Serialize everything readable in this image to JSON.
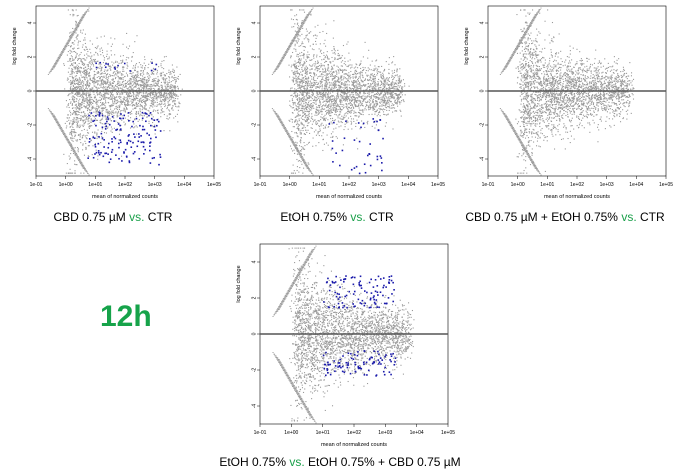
{
  "big_label": "12h",
  "highlight_color": "#1aa04a",
  "point_color_gray": "#9a9a9a",
  "point_color_sig": "#1a1aaa",
  "axis": {
    "xlabel": "mean of normalized counts",
    "ylabel": "log fold change",
    "xticks": [
      "1e-01",
      "1e+00",
      "1e+01",
      "1e+02",
      "1e+03",
      "1e+04",
      "1e+05"
    ],
    "yticks": [
      "4",
      "2",
      "0",
      "-2",
      "-4"
    ]
  },
  "panels": [
    {
      "caption_a": "CBD 0.75 µM ",
      "caption_vs": "vs.",
      "caption_b": " CTR"
    },
    {
      "caption_a": "EtOH 0.75% ",
      "caption_vs": "vs.",
      "caption_b": " CTR"
    },
    {
      "caption_a": "CBD 0.75 µM + EtOH 0.75% ",
      "caption_vs": "vs.",
      "caption_b": " CTR"
    },
    {
      "caption_a": "EtOH 0.75% ",
      "caption_vs": "vs.",
      "caption_b": " EtOH 0.75% + CBD 0.75 µM"
    }
  ],
  "chart_data": [
    {
      "type": "scatter",
      "title": "CBD 0.75 µM vs. CTR",
      "xscale": "log",
      "xlim": [
        0.1,
        100000
      ],
      "ylim": [
        -5,
        5
      ],
      "xlabel": "mean of normalized counts",
      "ylabel": "log fold change",
      "hline": 0,
      "series": [
        {
          "name": "",
          "values": []
        }
      ],
      "significant_points": {
        "count": 160,
        "x_range": [
          5,
          1500
        ],
        "y_range": [
          -4.3,
          1.8
        ],
        "direction": "mostly down"
      }
    },
    {
      "type": "scatter",
      "title": "EtOH 0.75% vs. CTR",
      "xscale": "log",
      "xlim": [
        0.1,
        100000
      ],
      "ylim": [
        -5,
        5
      ],
      "xlabel": "mean of normalized counts",
      "ylabel": "log fold change",
      "hline": 0,
      "significant_points": {
        "count": 40,
        "x_range": [
          20,
          1500
        ],
        "y_range": [
          -4.8,
          -1.5
        ],
        "direction": "down"
      }
    },
    {
      "type": "scatter",
      "title": "CBD 0.75 µM + EtOH 0.75% vs. CTR",
      "xscale": "log",
      "xlim": [
        0.1,
        100000
      ],
      "ylim": [
        -5,
        5
      ],
      "xlabel": "mean of normalized counts",
      "ylabel": "log fold change",
      "hline": 0,
      "significant_points": {
        "count": 0
      }
    },
    {
      "type": "scatter",
      "title": "EtOH 0.75% vs. EtOH 0.75% + CBD 0.75 µM",
      "xscale": "log",
      "xlim": [
        0.1,
        100000
      ],
      "ylim": [
        -5,
        5
      ],
      "xlabel": "mean of normalized counts",
      "ylabel": "log fold change",
      "hline": 0,
      "significant_points": {
        "count": 200,
        "x_range": [
          10,
          2000
        ],
        "y_range": [
          -2.3,
          3.3
        ],
        "direction": "up and down"
      }
    }
  ]
}
